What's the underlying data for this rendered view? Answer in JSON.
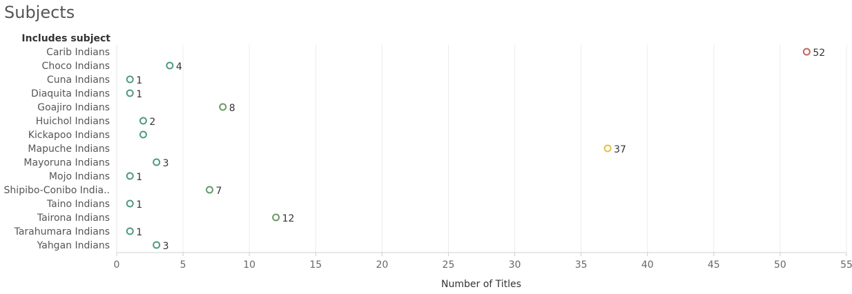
{
  "page": {
    "title": "Subjects"
  },
  "chart_data": {
    "type": "scatter",
    "title": "Subjects",
    "row_header": "Includes subject",
    "xlabel": "Number of Titles",
    "xlim": [
      0,
      55
    ],
    "xticks": [
      0,
      5,
      10,
      15,
      20,
      25,
      30,
      35,
      40,
      45,
      50,
      55
    ],
    "grid": "vertical",
    "categories": [
      "Carib Indians",
      "Choco Indians",
      "Cuna Indians",
      "Diaquita Indians",
      "Goajiro Indians",
      "Huichol Indians",
      "Kickapoo Indians",
      "Mapuche Indians",
      "Mayoruna Indians",
      "Mojo Indians",
      "Shipibo-Conibo India..",
      "Taino Indians",
      "Tairona Indians",
      "Tarahumara Indians",
      "Yahgan Indians"
    ],
    "values": [
      52,
      4,
      1,
      1,
      8,
      2,
      2,
      37,
      3,
      1,
      7,
      1,
      12,
      1,
      3
    ],
    "data_labels": [
      "52",
      "4",
      "1",
      "1",
      "8",
      "2",
      "",
      "37",
      "3",
      "1",
      "7",
      "1",
      "12",
      "1",
      "3"
    ],
    "colors": [
      "#c0655a",
      "#4e9a7f",
      "#4e9a7f",
      "#4e9a7f",
      "#6a9a64",
      "#4e9a7f",
      "#4e9a7f",
      "#e6c040",
      "#4e9a7f",
      "#4e9a7f",
      "#5e9a6e",
      "#4e9a7f",
      "#6a9a64",
      "#4e9a7f",
      "#4e9a7f"
    ]
  }
}
